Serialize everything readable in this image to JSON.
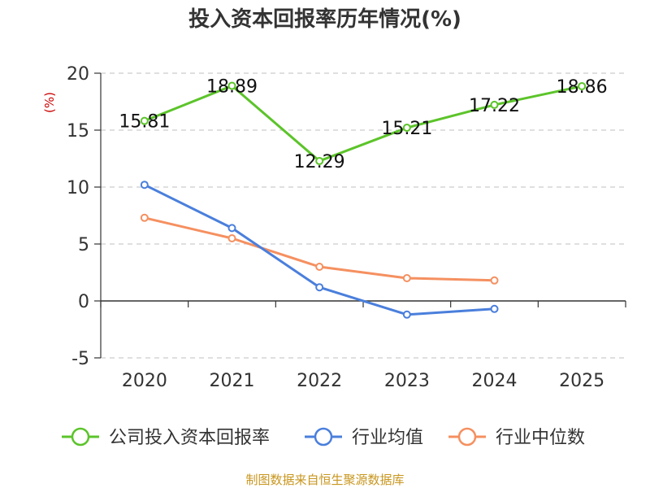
{
  "chart_data": {
    "type": "line",
    "title": "投入资本回报率历年情况(%)",
    "ylabel": "(%)",
    "xlabel": "",
    "categories": [
      "2020",
      "2021",
      "2022",
      "2023",
      "2024",
      "2025"
    ],
    "ylim": [
      -5,
      20
    ],
    "yticks": [
      -5,
      0,
      5,
      10,
      15,
      20
    ],
    "grid": true,
    "legend_position": "bottom",
    "series": [
      {
        "name": "公司投入资本回报率",
        "color": "#5cc42a",
        "values": [
          15.81,
          18.89,
          12.29,
          15.21,
          17.22,
          18.86
        ],
        "labels": [
          "15.81",
          "18.89",
          "12.29",
          "15.21",
          "17.22",
          "18.86"
        ]
      },
      {
        "name": "行业均值",
        "color": "#4a7fdc",
        "values": [
          10.2,
          6.4,
          1.2,
          -1.2,
          -0.7,
          null
        ]
      },
      {
        "name": "行业中位数",
        "color": "#f59060",
        "values": [
          7.3,
          5.5,
          3.0,
          2.0,
          1.8,
          null
        ]
      }
    ]
  },
  "source": "制图数据来自恒生聚源数据库"
}
